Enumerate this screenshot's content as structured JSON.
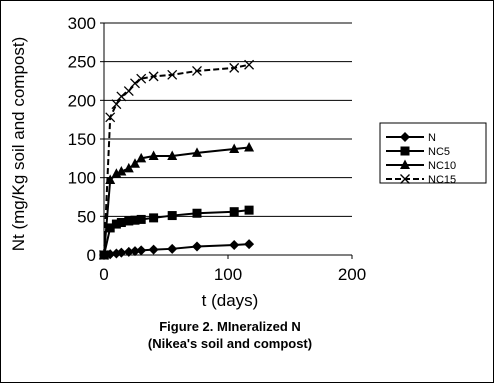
{
  "chart_data": {
    "type": "line",
    "title": "",
    "xlabel": "t (days)",
    "ylabel": "Nt (mg/Kg soil and compost)",
    "xlim": [
      0,
      200
    ],
    "ylim": [
      0,
      300
    ],
    "xticks": [
      0,
      100,
      200
    ],
    "yticks": [
      0,
      50,
      100,
      150,
      200,
      250,
      300
    ],
    "grid": "horizontal",
    "legend_position": "right",
    "caption_line1": "Figure 2. MIneralized N",
    "caption_line2": "(Nikea's soil and compost)",
    "series": [
      {
        "name": "N",
        "marker": "diamond",
        "x": [
          0,
          5,
          10,
          14,
          20,
          25,
          30,
          40,
          55,
          75,
          105,
          117
        ],
        "y": [
          0,
          1,
          2,
          3,
          4,
          5,
          6,
          7,
          8,
          11,
          13,
          14
        ]
      },
      {
        "name": "NC5",
        "marker": "square",
        "x": [
          0,
          5,
          10,
          14,
          20,
          25,
          30,
          40,
          55,
          75,
          105,
          117
        ],
        "y": [
          0,
          35,
          40,
          42,
          44,
          45,
          46,
          48,
          51,
          54,
          56,
          58
        ]
      },
      {
        "name": "NC10",
        "marker": "triangle",
        "x": [
          0,
          5,
          10,
          14,
          20,
          25,
          30,
          40,
          55,
          75,
          105,
          117
        ],
        "y": [
          0,
          97,
          105,
          108,
          112,
          118,
          125,
          128,
          128,
          132,
          137,
          139
        ]
      },
      {
        "name": "NC15",
        "marker": "x",
        "x": [
          0,
          5,
          10,
          14,
          20,
          25,
          30,
          40,
          55,
          75,
          105,
          117
        ],
        "y": [
          0,
          178,
          195,
          205,
          212,
          222,
          228,
          231,
          233,
          238,
          242,
          246
        ]
      }
    ]
  }
}
